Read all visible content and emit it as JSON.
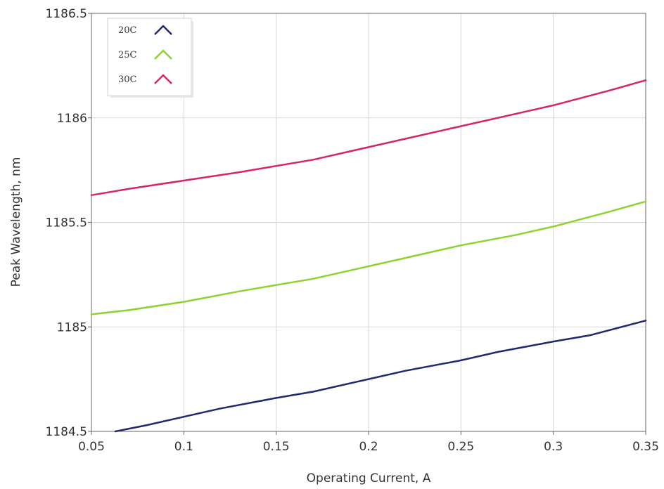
{
  "chart_data": {
    "type": "line",
    "title": "",
    "xlabel": "Operating Current, A",
    "ylabel": "Peak Wavelength, nm",
    "xlim": [
      0.05,
      0.35
    ],
    "ylim": [
      1184.5,
      1186.5
    ],
    "xticks": [
      "0.05",
      "0.1",
      "0.15",
      "0.2",
      "0.25",
      "0.3",
      "0.35"
    ],
    "yticks": [
      "1184.5",
      "1185",
      "1185.5",
      "1186",
      "1186.5"
    ],
    "grid": true,
    "legend_position": "top-left",
    "series": [
      {
        "name": "20C",
        "color": "#1f2a6e",
        "x": [
          0.063,
          0.08,
          0.1,
          0.12,
          0.15,
          0.17,
          0.2,
          0.22,
          0.25,
          0.27,
          0.3,
          0.32,
          0.35
        ],
        "y": [
          1184.5,
          1184.53,
          1184.57,
          1184.61,
          1184.66,
          1184.69,
          1184.75,
          1184.79,
          1184.84,
          1184.88,
          1184.93,
          1184.96,
          1185.03
        ]
      },
      {
        "name": "25C",
        "color": "#8fd12f",
        "x": [
          0.05,
          0.07,
          0.1,
          0.13,
          0.15,
          0.17,
          0.2,
          0.22,
          0.25,
          0.28,
          0.3,
          0.33,
          0.35
        ],
        "y": [
          1185.06,
          1185.08,
          1185.12,
          1185.17,
          1185.2,
          1185.23,
          1185.29,
          1185.33,
          1185.39,
          1185.44,
          1185.48,
          1185.55,
          1185.6
        ]
      },
      {
        "name": "30C",
        "color": "#d6246b",
        "x": [
          0.05,
          0.07,
          0.1,
          0.13,
          0.15,
          0.17,
          0.2,
          0.22,
          0.25,
          0.28,
          0.3,
          0.33,
          0.35
        ],
        "y": [
          1185.63,
          1185.66,
          1185.7,
          1185.74,
          1185.77,
          1185.8,
          1185.86,
          1185.9,
          1185.96,
          1186.02,
          1186.06,
          1186.13,
          1186.18
        ]
      }
    ]
  }
}
